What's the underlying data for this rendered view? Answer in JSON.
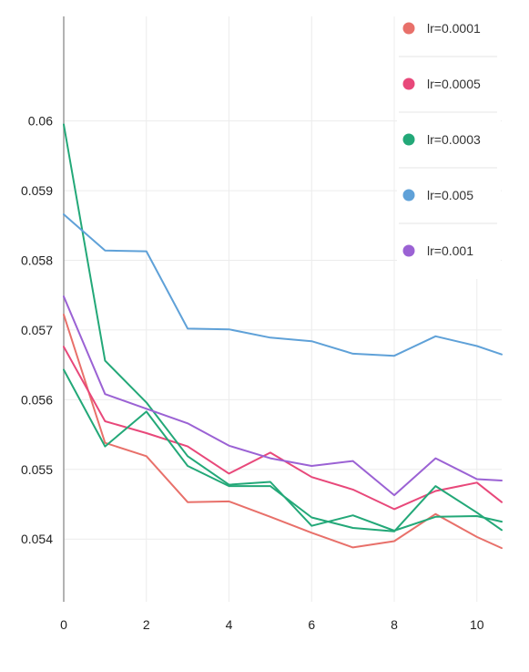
{
  "chart_data": {
    "type": "line",
    "title": "",
    "xlabel": "",
    "ylabel": "",
    "xlim": [
      0,
      10.6
    ],
    "ylim": [
      0.0531,
      0.0615
    ],
    "x_ticks": [
      0,
      2,
      4,
      6,
      8,
      10
    ],
    "x_tick_labels": [
      "0",
      "2",
      "4",
      "6",
      "8",
      "10"
    ],
    "y_ticks": [
      0.054,
      0.055,
      0.056,
      0.057,
      0.058,
      0.059,
      0.06
    ],
    "y_tick_labels": [
      "0.054",
      "0.055",
      "0.056",
      "0.057",
      "0.058",
      "0.059",
      "0.06"
    ],
    "grid": true,
    "legend_position": "top-right",
    "series": [
      {
        "name": "lr=0.0001",
        "color": "#e8706a",
        "x": [
          0,
          1,
          2,
          3,
          4,
          5,
          6,
          7,
          8,
          9,
          10,
          10.6
        ],
        "y": [
          0.05722,
          0.05538,
          0.05519,
          0.05453,
          0.05454,
          0.05432,
          0.05409,
          0.05388,
          0.05397,
          0.05436,
          0.05403,
          0.05387
        ]
      },
      {
        "name": "lr=0.0005",
        "color": "#e8487a",
        "x": [
          0,
          1,
          2,
          3,
          4,
          5,
          6,
          7,
          8,
          9,
          10,
          10.6
        ],
        "y": [
          0.05676,
          0.05569,
          0.05552,
          0.05533,
          0.05494,
          0.05524,
          0.05489,
          0.05471,
          0.05443,
          0.05469,
          0.05481,
          0.05453
        ]
      },
      {
        "name": "lr=0.0003",
        "color": "#23a878",
        "x": [
          0,
          1,
          2,
          3,
          4,
          5,
          6,
          7,
          8,
          9,
          10,
          10.6
        ],
        "y": [
          0.05643,
          0.05533,
          0.05583,
          0.05505,
          0.05476,
          0.05476,
          0.05431,
          0.05416,
          0.05411,
          0.05476,
          0.05438,
          0.05413
        ]
      },
      {
        "name": "lr=0.0003",
        "color": "#23a878",
        "x": [
          0,
          1,
          2,
          3,
          4,
          5,
          6,
          7,
          8,
          9,
          10,
          10.6
        ],
        "y": [
          0.05995,
          0.05656,
          0.05596,
          0.05519,
          0.05478,
          0.05482,
          0.05419,
          0.05434,
          0.05412,
          0.05432,
          0.05433,
          0.05425
        ]
      },
      {
        "name": "lr=0.005",
        "color": "#5fa1d8",
        "x": [
          0,
          1,
          2,
          3,
          4,
          5,
          6,
          7,
          8,
          9,
          10,
          10.6
        ],
        "y": [
          0.05866,
          0.05814,
          0.05813,
          0.05702,
          0.05701,
          0.05689,
          0.05684,
          0.05666,
          0.05663,
          0.05691,
          0.05677,
          0.05665
        ]
      },
      {
        "name": "lr=0.001",
        "color": "#9b62d4",
        "x": [
          0,
          1,
          2,
          3,
          4,
          5,
          6,
          7,
          8,
          9,
          10,
          10.6
        ],
        "y": [
          0.05748,
          0.05608,
          0.05587,
          0.05566,
          0.05534,
          0.05516,
          0.05505,
          0.05512,
          0.05463,
          0.05516,
          0.05486,
          0.05484
        ]
      }
    ],
    "legend": [
      {
        "label": "lr=0.0001",
        "color": "#e8706a"
      },
      {
        "label": "lr=0.0005",
        "color": "#e8487a"
      },
      {
        "label": "lr=0.0003",
        "color": "#23a878"
      },
      {
        "label": "lr=0.005",
        "color": "#5fa1d8"
      },
      {
        "label": "lr=0.001",
        "color": "#9b62d4"
      }
    ]
  }
}
